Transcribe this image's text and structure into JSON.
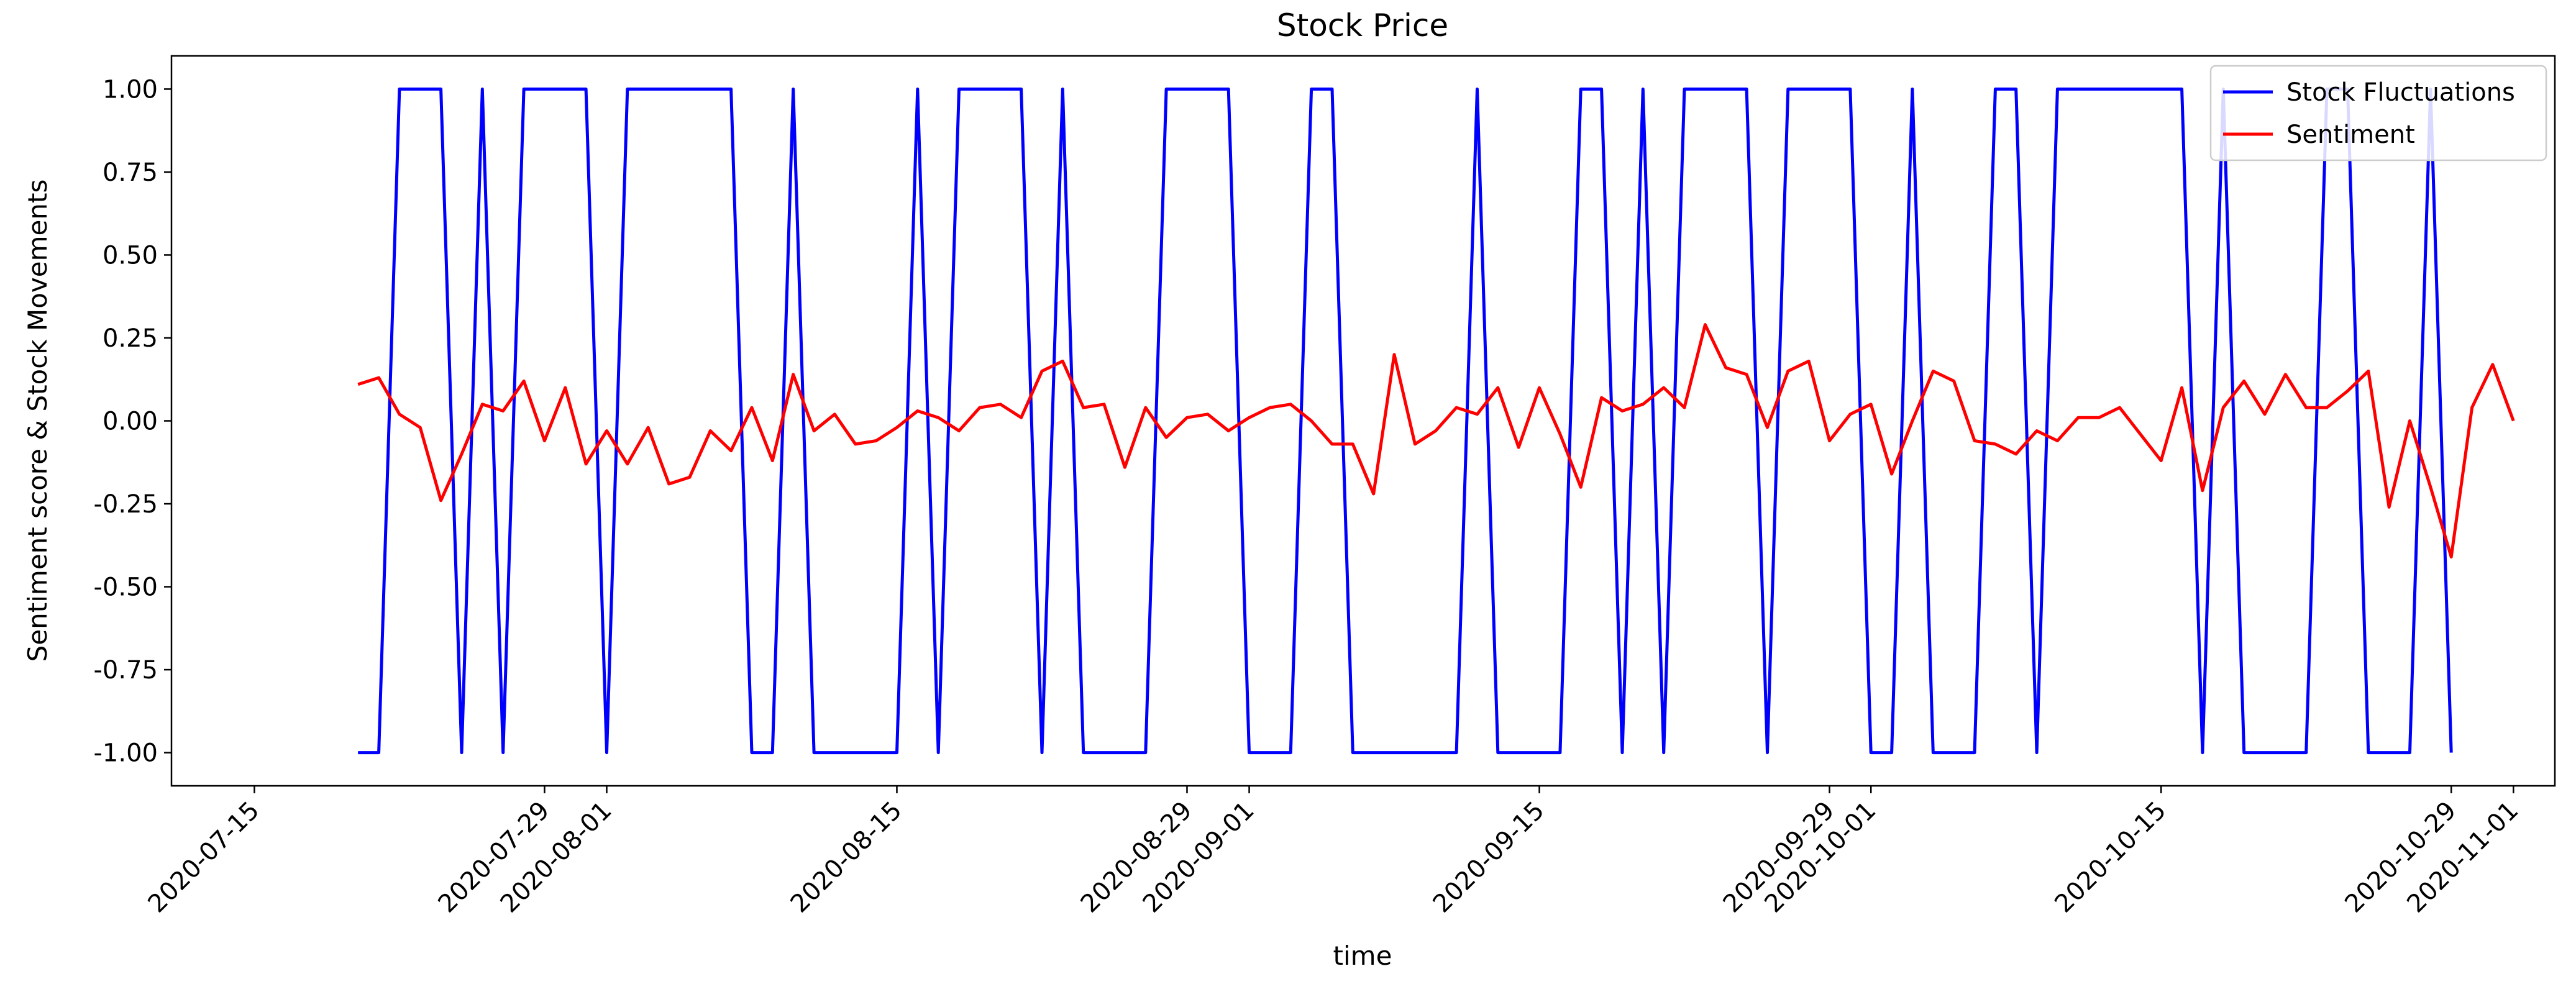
{
  "chart_data": {
    "type": "line",
    "title": "Stock Price",
    "xlabel": "time",
    "ylabel": "Sentiment score & Stock Movements",
    "xlim": [
      "2020-07-11",
      "2020-11-03"
    ],
    "ylim": [
      -1.1,
      1.1
    ],
    "grid": false,
    "legend_position": "upper right",
    "x_ticks": [
      "2020-07-15",
      "2020-07-29",
      "2020-08-01",
      "2020-08-15",
      "2020-08-29",
      "2020-09-01",
      "2020-09-15",
      "2020-09-29",
      "2020-10-01",
      "2020-10-15",
      "2020-10-29",
      "2020-11-01"
    ],
    "y_ticks": [
      "-1.00",
      "-0.75",
      "-0.50",
      "-0.25",
      "0.00",
      "0.25",
      "0.50",
      "0.75",
      "1.00"
    ],
    "series": [
      {
        "name": "Stock Fluctuations",
        "color": "#0000ff",
        "points": [
          [
            "2020-07-20",
            -1
          ],
          [
            "2020-07-21",
            -1
          ],
          [
            "2020-07-22",
            1
          ],
          [
            "2020-07-23",
            1
          ],
          [
            "2020-07-24",
            1
          ],
          [
            "2020-07-25",
            -1
          ],
          [
            "2020-07-26",
            1
          ],
          [
            "2020-07-27",
            -1
          ],
          [
            "2020-07-28",
            1
          ],
          [
            "2020-07-29",
            1
          ],
          [
            "2020-07-30",
            1
          ],
          [
            "2020-07-31",
            1
          ],
          [
            "2020-08-01",
            -1
          ],
          [
            "2020-08-02",
            1
          ],
          [
            "2020-08-03",
            1
          ],
          [
            "2020-08-04",
            1
          ],
          [
            "2020-08-05",
            1
          ],
          [
            "2020-08-06",
            1
          ],
          [
            "2020-08-07",
            1
          ],
          [
            "2020-08-08",
            -1
          ],
          [
            "2020-08-09",
            -1
          ],
          [
            "2020-08-10",
            1
          ],
          [
            "2020-08-11",
            -1
          ],
          [
            "2020-08-12",
            -1
          ],
          [
            "2020-08-13",
            -1
          ],
          [
            "2020-08-14",
            -1
          ],
          [
            "2020-08-15",
            -1
          ],
          [
            "2020-08-16",
            1
          ],
          [
            "2020-08-17",
            -1
          ],
          [
            "2020-08-18",
            1
          ],
          [
            "2020-08-19",
            1
          ],
          [
            "2020-08-20",
            1
          ],
          [
            "2020-08-21",
            1
          ],
          [
            "2020-08-22",
            -1
          ],
          [
            "2020-08-23",
            1
          ],
          [
            "2020-08-24",
            -1
          ],
          [
            "2020-08-25",
            -1
          ],
          [
            "2020-08-26",
            -1
          ],
          [
            "2020-08-27",
            -1
          ],
          [
            "2020-08-28",
            1
          ],
          [
            "2020-08-29",
            1
          ],
          [
            "2020-08-30",
            1
          ],
          [
            "2020-08-31",
            1
          ],
          [
            "2020-09-01",
            -1
          ],
          [
            "2020-09-02",
            -1
          ],
          [
            "2020-09-03",
            -1
          ],
          [
            "2020-09-04",
            1
          ],
          [
            "2020-09-05",
            1
          ],
          [
            "2020-09-06",
            -1
          ],
          [
            "2020-09-07",
            -1
          ],
          [
            "2020-09-08",
            -1
          ],
          [
            "2020-09-09",
            -1
          ],
          [
            "2020-09-10",
            -1
          ],
          [
            "2020-09-11",
            -1
          ],
          [
            "2020-09-12",
            1
          ],
          [
            "2020-09-13",
            -1
          ],
          [
            "2020-09-14",
            -1
          ],
          [
            "2020-09-15",
            -1
          ],
          [
            "2020-09-16",
            -1
          ],
          [
            "2020-09-17",
            1
          ],
          [
            "2020-09-18",
            1
          ],
          [
            "2020-09-19",
            -1
          ],
          [
            "2020-09-20",
            1
          ],
          [
            "2020-09-21",
            -1
          ],
          [
            "2020-09-22",
            1
          ],
          [
            "2020-09-23",
            1
          ],
          [
            "2020-09-24",
            1
          ],
          [
            "2020-09-25",
            1
          ],
          [
            "2020-09-26",
            -1
          ],
          [
            "2020-09-27",
            1
          ],
          [
            "2020-09-28",
            1
          ],
          [
            "2020-09-29",
            1
          ],
          [
            "2020-09-30",
            1
          ],
          [
            "2020-10-01",
            -1
          ],
          [
            "2020-10-02",
            -1
          ],
          [
            "2020-10-03",
            1
          ],
          [
            "2020-10-04",
            -1
          ],
          [
            "2020-10-05",
            -1
          ],
          [
            "2020-10-06",
            -1
          ],
          [
            "2020-10-07",
            1
          ],
          [
            "2020-10-08",
            1
          ],
          [
            "2020-10-09",
            -1
          ],
          [
            "2020-10-10",
            1
          ],
          [
            "2020-10-11",
            1
          ],
          [
            "2020-10-12",
            1
          ],
          [
            "2020-10-13",
            1
          ],
          [
            "2020-10-14",
            1
          ],
          [
            "2020-10-15",
            1
          ],
          [
            "2020-10-16",
            1
          ],
          [
            "2020-10-17",
            -1
          ],
          [
            "2020-10-18",
            1
          ],
          [
            "2020-10-19",
            -1
          ],
          [
            "2020-10-20",
            -1
          ],
          [
            "2020-10-21",
            -1
          ],
          [
            "2020-10-22",
            -1
          ],
          [
            "2020-10-23",
            1
          ],
          [
            "2020-10-24",
            1
          ],
          [
            "2020-10-25",
            -1
          ],
          [
            "2020-10-26",
            -1
          ],
          [
            "2020-10-27",
            -1
          ],
          [
            "2020-10-28",
            1
          ],
          [
            "2020-10-29",
            -1
          ]
        ]
      },
      {
        "name": "Sentiment",
        "color": "#ff0000",
        "points": [
          [
            "2020-07-20",
            0.11
          ],
          [
            "2020-07-21",
            0.13
          ],
          [
            "2020-07-22",
            0.02
          ],
          [
            "2020-07-23",
            -0.02
          ],
          [
            "2020-07-24",
            -0.24
          ],
          [
            "2020-07-25",
            -0.1
          ],
          [
            "2020-07-26",
            0.05
          ],
          [
            "2020-07-27",
            0.03
          ],
          [
            "2020-07-28",
            0.12
          ],
          [
            "2020-07-29",
            -0.06
          ],
          [
            "2020-07-30",
            0.1
          ],
          [
            "2020-07-31",
            -0.13
          ],
          [
            "2020-08-01",
            -0.03
          ],
          [
            "2020-08-02",
            -0.13
          ],
          [
            "2020-08-03",
            -0.02
          ],
          [
            "2020-08-04",
            -0.19
          ],
          [
            "2020-08-05",
            -0.17
          ],
          [
            "2020-08-06",
            -0.03
          ],
          [
            "2020-08-07",
            -0.09
          ],
          [
            "2020-08-08",
            0.04
          ],
          [
            "2020-08-09",
            -0.12
          ],
          [
            "2020-08-10",
            0.14
          ],
          [
            "2020-08-11",
            -0.03
          ],
          [
            "2020-08-12",
            0.02
          ],
          [
            "2020-08-13",
            -0.07
          ],
          [
            "2020-08-14",
            -0.06
          ],
          [
            "2020-08-15",
            -0.02
          ],
          [
            "2020-08-16",
            0.03
          ],
          [
            "2020-08-17",
            0.01
          ],
          [
            "2020-08-18",
            -0.03
          ],
          [
            "2020-08-19",
            0.04
          ],
          [
            "2020-08-20",
            0.05
          ],
          [
            "2020-08-21",
            0.01
          ],
          [
            "2020-08-22",
            0.15
          ],
          [
            "2020-08-23",
            0.18
          ],
          [
            "2020-08-24",
            0.04
          ],
          [
            "2020-08-25",
            0.05
          ],
          [
            "2020-08-26",
            -0.14
          ],
          [
            "2020-08-27",
            0.04
          ],
          [
            "2020-08-28",
            -0.05
          ],
          [
            "2020-08-29",
            0.01
          ],
          [
            "2020-08-30",
            0.02
          ],
          [
            "2020-08-31",
            -0.03
          ],
          [
            "2020-09-01",
            0.01
          ],
          [
            "2020-09-02",
            0.04
          ],
          [
            "2020-09-03",
            0.05
          ],
          [
            "2020-09-04",
            0.0
          ],
          [
            "2020-09-05",
            -0.07
          ],
          [
            "2020-09-06",
            -0.07
          ],
          [
            "2020-09-07",
            -0.22
          ],
          [
            "2020-09-08",
            0.2
          ],
          [
            "2020-09-09",
            -0.07
          ],
          [
            "2020-09-10",
            -0.03
          ],
          [
            "2020-09-11",
            0.04
          ],
          [
            "2020-09-12",
            0.02
          ],
          [
            "2020-09-13",
            0.1
          ],
          [
            "2020-09-14",
            -0.08
          ],
          [
            "2020-09-15",
            0.1
          ],
          [
            "2020-09-16",
            -0.04
          ],
          [
            "2020-09-17",
            -0.2
          ],
          [
            "2020-09-18",
            0.07
          ],
          [
            "2020-09-19",
            0.03
          ],
          [
            "2020-09-20",
            0.05
          ],
          [
            "2020-09-21",
            0.1
          ],
          [
            "2020-09-22",
            0.04
          ],
          [
            "2020-09-23",
            0.29
          ],
          [
            "2020-09-24",
            0.16
          ],
          [
            "2020-09-25",
            0.14
          ],
          [
            "2020-09-26",
            -0.02
          ],
          [
            "2020-09-27",
            0.15
          ],
          [
            "2020-09-28",
            0.18
          ],
          [
            "2020-09-29",
            -0.06
          ],
          [
            "2020-09-30",
            0.02
          ],
          [
            "2020-10-01",
            0.05
          ],
          [
            "2020-10-02",
            -0.16
          ],
          [
            "2020-10-03",
            0.0
          ],
          [
            "2020-10-04",
            0.15
          ],
          [
            "2020-10-05",
            0.12
          ],
          [
            "2020-10-06",
            -0.06
          ],
          [
            "2020-10-07",
            -0.07
          ],
          [
            "2020-10-08",
            -0.1
          ],
          [
            "2020-10-09",
            -0.03
          ],
          [
            "2020-10-10",
            -0.06
          ],
          [
            "2020-10-11",
            0.01
          ],
          [
            "2020-10-12",
            0.01
          ],
          [
            "2020-10-13",
            0.04
          ],
          [
            "2020-10-14",
            -0.04
          ],
          [
            "2020-10-15",
            -0.12
          ],
          [
            "2020-10-16",
            0.1
          ],
          [
            "2020-10-17",
            -0.21
          ],
          [
            "2020-10-18",
            0.04
          ],
          [
            "2020-10-19",
            0.12
          ],
          [
            "2020-10-20",
            0.02
          ],
          [
            "2020-10-21",
            0.14
          ],
          [
            "2020-10-22",
            0.04
          ],
          [
            "2020-10-23",
            0.04
          ],
          [
            "2020-10-24",
            0.09
          ],
          [
            "2020-10-25",
            0.15
          ],
          [
            "2020-10-26",
            -0.26
          ],
          [
            "2020-10-27",
            0.0
          ],
          [
            "2020-10-28",
            -0.2
          ],
          [
            "2020-10-29",
            -0.41
          ],
          [
            "2020-10-30",
            0.04
          ],
          [
            "2020-10-31",
            0.17
          ],
          [
            "2020-11-01",
            0.0
          ]
        ]
      }
    ]
  }
}
